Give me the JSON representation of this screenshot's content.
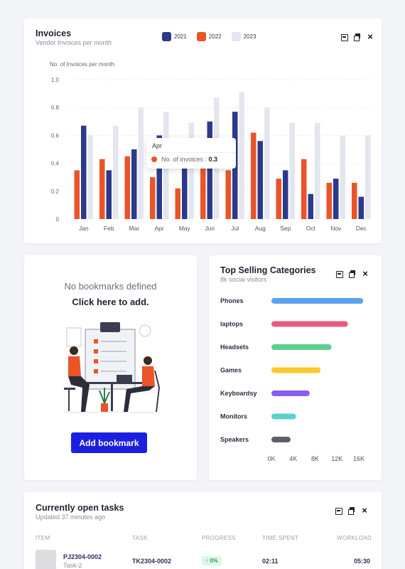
{
  "invoices": {
    "title": "Invoices",
    "subtitle": "Vendor Invoices per month",
    "legend": [
      {
        "label": "2021",
        "color": "#2c3a8c"
      },
      {
        "label": "2022",
        "color": "#ea5428"
      },
      {
        "label": "2023",
        "color": "#e3e6ee"
      }
    ],
    "tooltip": {
      "month": "Apr",
      "label": "No. of invoices :",
      "value": "0.3",
      "color": "#ea5428"
    }
  },
  "chart_data": [
    {
      "type": "bar",
      "ylabel": "No. of Invoices per month",
      "ylim": [
        0,
        1.0
      ],
      "yticks": [
        "0",
        "0.2",
        "0.4",
        "0.6",
        "0.8",
        "1.0"
      ],
      "categories": [
        "Jan",
        "Feb",
        "Mar",
        "Apr",
        "May",
        "Jun",
        "Jul",
        "Aug",
        "Sep",
        "Oct",
        "Nov",
        "Dec"
      ],
      "series": [
        {
          "name": "2021",
          "color": "#2c3a8c",
          "values": [
            0.67,
            0.35,
            0.5,
            0.6,
            0.38,
            0.7,
            0.77,
            0.56,
            0.35,
            0.18,
            0.29,
            0.16
          ]
        },
        {
          "name": "2022",
          "color": "#ea5428",
          "values": [
            0.35,
            0.43,
            0.45,
            0.3,
            0.22,
            0.4,
            0.35,
            0.62,
            0.29,
            0.43,
            0.26,
            0.26
          ]
        },
        {
          "name": "2023",
          "color": "#e3e6ee",
          "values": [
            0.6,
            0.67,
            0.8,
            0.77,
            0.69,
            0.87,
            0.91,
            0.8,
            0.69,
            0.69,
            0.6,
            0.6
          ]
        }
      ],
      "grid": true
    },
    {
      "type": "bar",
      "orientation": "horizontal",
      "categories": [
        "Phones",
        "laptops",
        "Headsets",
        "Games",
        "Keyboardsy",
        "Monitors",
        "Speakers"
      ],
      "values": [
        16800,
        14000,
        11000,
        9000,
        7000,
        4500,
        3500
      ],
      "colors": [
        "#5aa3ef",
        "#e85b80",
        "#5fcf8f",
        "#f7c92a",
        "#8b5cf0",
        "#5cd0cc",
        "#5d5e6c"
      ],
      "xticks": [
        "0K",
        "4K",
        "8K",
        "12K",
        "16K"
      ],
      "xlim": [
        0,
        16000
      ]
    }
  ],
  "bookmarks": {
    "empty_text": "No bookmarks defined",
    "cta_text": "Click here to add.",
    "button_label": "Add bookmark"
  },
  "categories": {
    "title": "Top Selling Categories",
    "subtitle": "8k social visitors"
  },
  "tasks": {
    "title": "Currently open tasks",
    "subtitle": "Updated 37 minutes ago",
    "columns": [
      "ITEM",
      "TASK",
      "PROGRESS",
      "TIME SPENT",
      "WORKLOAD"
    ],
    "rows": [
      {
        "item": "PJ2304-0002",
        "item_sub": "Task-2",
        "task": "TK2304-0002",
        "progress": "↑ 0%",
        "time_spent": "02:11",
        "workload": "05:30"
      }
    ]
  }
}
